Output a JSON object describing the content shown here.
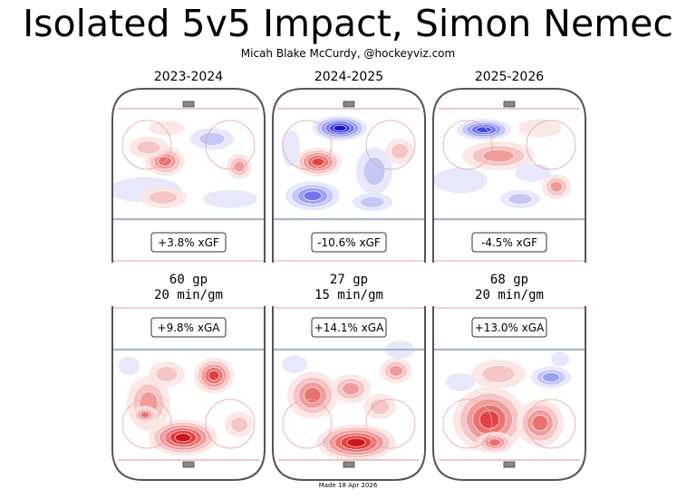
{
  "header": {
    "title": "Isolated 5v5 Impact, Simon Nemec",
    "subtitle": "Micah Blake McCurdy, @hockeyviz.com"
  },
  "footer": {
    "made_date": "Made 18 Apr 2026"
  },
  "colors": {
    "positive": "#e41a1c",
    "negative": "#1f2fd1",
    "rink_line": "#e8a3a3",
    "blue_line": "#a9b5c8",
    "boards": "#555555"
  },
  "chart_data": [
    {
      "type": "heatmap",
      "season": "2023-2024",
      "metric": "xGF",
      "label": "+3.8% xGF",
      "xgf_pct": 3.8,
      "gp_line": "60 gp",
      "toi_line": "20 min/gm"
    },
    {
      "type": "heatmap",
      "season": "2024-2025",
      "metric": "xGF",
      "label": "-10.6% xGF",
      "xgf_pct": -10.6,
      "gp_line": "27 gp",
      "toi_line": "15 min/gm"
    },
    {
      "type": "heatmap",
      "season": "2025-2026",
      "metric": "xGF",
      "label": "-4.5% xGF",
      "xgf_pct": -4.5,
      "gp_line": "68 gp",
      "toi_line": "20 min/gm"
    },
    {
      "type": "heatmap",
      "season": "2023-2024",
      "metric": "xGA",
      "label": "+9.8% xGA",
      "xga_pct": 9.8
    },
    {
      "type": "heatmap",
      "season": "2024-2025",
      "metric": "xGA",
      "label": "+14.1% xGA",
      "xga_pct": 14.1
    },
    {
      "type": "heatmap",
      "season": "2025-2026",
      "metric": "xGA",
      "label": "+13.0% xGA",
      "xga_pct": 13.0
    }
  ]
}
